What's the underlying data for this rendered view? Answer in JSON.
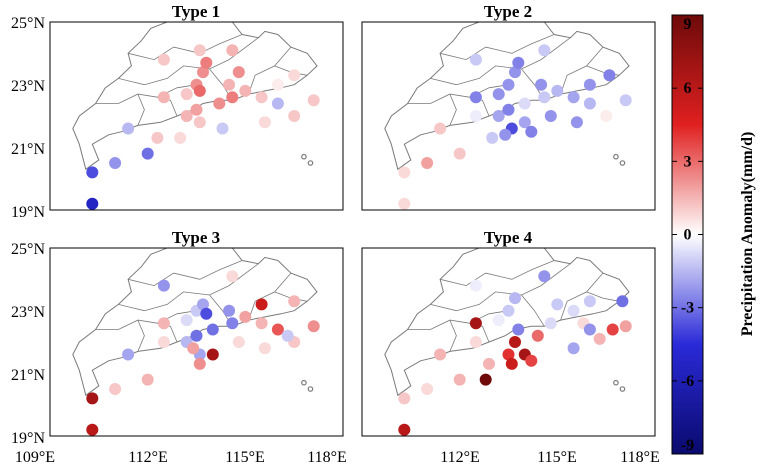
{
  "chart_data": [
    {
      "type": "scatter",
      "title": "Type 1",
      "x_ticks": [
        "109°E",
        "112°E",
        "115°E",
        "118°E"
      ],
      "y_ticks": [
        "25°N",
        "23°N",
        "21°N",
        "19°N"
      ],
      "xlim": [
        109,
        118
      ],
      "ylim": [
        19,
        25
      ],
      "points": [
        {
          "lon": 110.3,
          "lat": 19.2,
          "value": -6.5
        },
        {
          "lon": 110.3,
          "lat": 20.2,
          "value": -5.0
        },
        {
          "lon": 111.0,
          "lat": 20.5,
          "value": -3.0
        },
        {
          "lon": 112.0,
          "lat": 20.8,
          "value": -4.0
        },
        {
          "lon": 112.3,
          "lat": 21.3,
          "value": 1.5
        },
        {
          "lon": 111.4,
          "lat": 21.6,
          "value": -2.0
        },
        {
          "lon": 112.5,
          "lat": 23.8,
          "value": 1.5
        },
        {
          "lon": 112.5,
          "lat": 22.6,
          "value": 2.0
        },
        {
          "lon": 113.2,
          "lat": 22.0,
          "value": 2.0
        },
        {
          "lon": 113.2,
          "lat": 22.7,
          "value": 1.5
        },
        {
          "lon": 113.5,
          "lat": 23.0,
          "value": 3.0
        },
        {
          "lon": 113.5,
          "lat": 22.2,
          "value": 2.5
        },
        {
          "lon": 113.6,
          "lat": 21.8,
          "value": 1.5
        },
        {
          "lon": 113.6,
          "lat": 22.8,
          "value": 4.0
        },
        {
          "lon": 113.7,
          "lat": 23.4,
          "value": 3.0
        },
        {
          "lon": 113.8,
          "lat": 23.7,
          "value": 3.5
        },
        {
          "lon": 113.6,
          "lat": 24.1,
          "value": 1.5
        },
        {
          "lon": 114.2,
          "lat": 22.4,
          "value": 3.0
        },
        {
          "lon": 114.3,
          "lat": 21.6,
          "value": -1.5
        },
        {
          "lon": 114.5,
          "lat": 23.0,
          "value": 2.0
        },
        {
          "lon": 114.6,
          "lat": 22.6,
          "value": 3.5
        },
        {
          "lon": 114.8,
          "lat": 23.4,
          "value": 3.0
        },
        {
          "lon": 114.6,
          "lat": 24.1,
          "value": 2.0
        },
        {
          "lon": 115.0,
          "lat": 22.8,
          "value": 2.0
        },
        {
          "lon": 115.5,
          "lat": 22.6,
          "value": 1.5
        },
        {
          "lon": 115.6,
          "lat": 21.8,
          "value": 1.0
        },
        {
          "lon": 116.0,
          "lat": 23.0,
          "value": 0.5
        },
        {
          "lon": 116.0,
          "lat": 22.4,
          "value": -2.0
        },
        {
          "lon": 116.5,
          "lat": 23.3,
          "value": 1.0
        },
        {
          "lon": 116.5,
          "lat": 22.0,
          "value": 1.5
        },
        {
          "lon": 117.1,
          "lat": 22.5,
          "value": 1.5
        },
        {
          "lon": 113.0,
          "lat": 21.3,
          "value": 1.0
        }
      ]
    },
    {
      "type": "scatter",
      "title": "Type 2",
      "x_ticks": [
        "109°E",
        "112°E",
        "115°E",
        "118°E"
      ],
      "y_ticks": [
        "25°N",
        "23°N",
        "21°N",
        "19°N"
      ],
      "xlim": [
        109,
        118
      ],
      "ylim": [
        19,
        25
      ],
      "points": [
        {
          "lon": 110.3,
          "lat": 19.2,
          "value": 1.0
        },
        {
          "lon": 110.3,
          "lat": 20.2,
          "value": 1.0
        },
        {
          "lon": 111.0,
          "lat": 20.5,
          "value": 2.5
        },
        {
          "lon": 112.0,
          "lat": 20.8,
          "value": 1.5
        },
        {
          "lon": 111.4,
          "lat": 21.6,
          "value": 1.5
        },
        {
          "lon": 112.5,
          "lat": 23.8,
          "value": -1.5
        },
        {
          "lon": 112.5,
          "lat": 22.6,
          "value": -3.5
        },
        {
          "lon": 112.5,
          "lat": 22.0,
          "value": -0.5
        },
        {
          "lon": 113.2,
          "lat": 22.0,
          "value": -2.5
        },
        {
          "lon": 113.2,
          "lat": 22.7,
          "value": -3.0
        },
        {
          "lon": 113.5,
          "lat": 23.0,
          "value": -3.0
        },
        {
          "lon": 113.5,
          "lat": 22.2,
          "value": -3.5
        },
        {
          "lon": 113.6,
          "lat": 21.6,
          "value": -5.0
        },
        {
          "lon": 113.7,
          "lat": 23.4,
          "value": -3.0
        },
        {
          "lon": 113.8,
          "lat": 23.7,
          "value": -3.5
        },
        {
          "lon": 113.4,
          "lat": 21.4,
          "value": -3.0
        },
        {
          "lon": 114.0,
          "lat": 22.4,
          "value": -1.0
        },
        {
          "lon": 114.0,
          "lat": 21.8,
          "value": -2.5
        },
        {
          "lon": 114.2,
          "lat": 21.5,
          "value": -3.5
        },
        {
          "lon": 114.5,
          "lat": 23.0,
          "value": -3.0
        },
        {
          "lon": 114.6,
          "lat": 22.6,
          "value": -1.5
        },
        {
          "lon": 114.8,
          "lat": 22.0,
          "value": -3.0
        },
        {
          "lon": 114.6,
          "lat": 24.1,
          "value": -1.5
        },
        {
          "lon": 115.0,
          "lat": 22.8,
          "value": -2.0
        },
        {
          "lon": 115.5,
          "lat": 22.6,
          "value": -2.5
        },
        {
          "lon": 115.6,
          "lat": 21.8,
          "value": -3.0
        },
        {
          "lon": 116.0,
          "lat": 23.0,
          "value": -3.0
        },
        {
          "lon": 116.0,
          "lat": 22.4,
          "value": -2.0
        },
        {
          "lon": 116.6,
          "lat": 23.3,
          "value": -3.5
        },
        {
          "lon": 116.5,
          "lat": 22.0,
          "value": 0.5
        },
        {
          "lon": 117.1,
          "lat": 22.5,
          "value": -1.5
        },
        {
          "lon": 113.0,
          "lat": 21.3,
          "value": -1.5
        }
      ]
    },
    {
      "type": "scatter",
      "title": "Type 3",
      "x_ticks": [
        "109°E",
        "112°E",
        "115°E",
        "118°E"
      ],
      "y_ticks": [
        "25°N",
        "23°N",
        "21°N",
        "19°N"
      ],
      "xlim": [
        109,
        118
      ],
      "ylim": [
        19,
        25
      ],
      "points": [
        {
          "lon": 110.3,
          "lat": 19.2,
          "value": 7.0
        },
        {
          "lon": 110.3,
          "lat": 20.2,
          "value": 7.5
        },
        {
          "lon": 111.0,
          "lat": 20.5,
          "value": 1.5
        },
        {
          "lon": 112.0,
          "lat": 20.8,
          "value": 2.0
        },
        {
          "lon": 111.4,
          "lat": 21.6,
          "value": -2.5
        },
        {
          "lon": 112.5,
          "lat": 23.8,
          "value": -3.0
        },
        {
          "lon": 112.5,
          "lat": 22.6,
          "value": 2.0
        },
        {
          "lon": 112.5,
          "lat": 22.0,
          "value": 1.0
        },
        {
          "lon": 113.2,
          "lat": 22.0,
          "value": -2.0
        },
        {
          "lon": 113.2,
          "lat": 22.7,
          "value": -1.0
        },
        {
          "lon": 113.5,
          "lat": 23.0,
          "value": -1.5
        },
        {
          "lon": 113.5,
          "lat": 22.2,
          "value": -4.0
        },
        {
          "lon": 113.6,
          "lat": 21.6,
          "value": -2.5
        },
        {
          "lon": 113.7,
          "lat": 23.2,
          "value": -2.5
        },
        {
          "lon": 113.8,
          "lat": 22.9,
          "value": -5.0
        },
        {
          "lon": 113.6,
          "lat": 21.3,
          "value": 3.0
        },
        {
          "lon": 113.4,
          "lat": 21.8,
          "value": 2.5
        },
        {
          "lon": 114.0,
          "lat": 22.4,
          "value": -4.0
        },
        {
          "lon": 114.0,
          "lat": 21.6,
          "value": 7.5
        },
        {
          "lon": 114.5,
          "lat": 23.0,
          "value": -3.0
        },
        {
          "lon": 114.6,
          "lat": 22.6,
          "value": -3.5
        },
        {
          "lon": 114.8,
          "lat": 22.0,
          "value": 1.0
        },
        {
          "lon": 114.6,
          "lat": 24.1,
          "value": 1.0
        },
        {
          "lon": 115.0,
          "lat": 22.8,
          "value": 2.5
        },
        {
          "lon": 115.5,
          "lat": 22.6,
          "value": 2.0
        },
        {
          "lon": 115.6,
          "lat": 21.8,
          "value": 1.0
        },
        {
          "lon": 115.5,
          "lat": 23.2,
          "value": 6.5
        },
        {
          "lon": 116.0,
          "lat": 22.4,
          "value": 4.5
        },
        {
          "lon": 116.5,
          "lat": 23.3,
          "value": 2.0
        },
        {
          "lon": 116.5,
          "lat": 22.0,
          "value": 1.5
        },
        {
          "lon": 117.1,
          "lat": 22.5,
          "value": 3.0
        },
        {
          "lon": 116.3,
          "lat": 22.2,
          "value": -1.5
        }
      ]
    },
    {
      "type": "scatter",
      "title": "Type 4",
      "x_ticks": [
        "109°E",
        "112°E",
        "115°E",
        "118°E"
      ],
      "y_ticks": [
        "25°N",
        "23°N",
        "21°N",
        "19°N"
      ],
      "xlim": [
        109,
        118
      ],
      "ylim": [
        19,
        25
      ],
      "points": [
        {
          "lon": 110.3,
          "lat": 19.2,
          "value": 7.0
        },
        {
          "lon": 110.3,
          "lat": 20.2,
          "value": 1.5
        },
        {
          "lon": 111.0,
          "lat": 20.5,
          "value": 1.0
        },
        {
          "lon": 112.0,
          "lat": 20.8,
          "value": 2.0
        },
        {
          "lon": 111.4,
          "lat": 21.6,
          "value": 2.0
        },
        {
          "lon": 112.5,
          "lat": 23.8,
          "value": -0.5
        },
        {
          "lon": 112.5,
          "lat": 22.6,
          "value": 7.5
        },
        {
          "lon": 112.5,
          "lat": 22.0,
          "value": 1.0
        },
        {
          "lon": 113.2,
          "lat": 22.7,
          "value": -0.5
        },
        {
          "lon": 113.5,
          "lat": 23.0,
          "value": -1.5
        },
        {
          "lon": 113.5,
          "lat": 21.6,
          "value": 5.5
        },
        {
          "lon": 113.6,
          "lat": 21.3,
          "value": 6.5
        },
        {
          "lon": 113.7,
          "lat": 23.4,
          "value": -2.0
        },
        {
          "lon": 113.8,
          "lat": 22.4,
          "value": -3.5
        },
        {
          "lon": 113.7,
          "lat": 22.0,
          "value": 7.0
        },
        {
          "lon": 112.8,
          "lat": 20.8,
          "value": 9.0
        },
        {
          "lon": 112.9,
          "lat": 21.3,
          "value": 2.0
        },
        {
          "lon": 114.0,
          "lat": 21.6,
          "value": 7.5
        },
        {
          "lon": 114.2,
          "lat": 21.4,
          "value": 5.0
        },
        {
          "lon": 114.4,
          "lat": 22.2,
          "value": 4.0
        },
        {
          "lon": 114.6,
          "lat": 24.1,
          "value": -3.0
        },
        {
          "lon": 114.8,
          "lat": 22.6,
          "value": -1.0
        },
        {
          "lon": 115.0,
          "lat": 23.2,
          "value": -1.5
        },
        {
          "lon": 115.5,
          "lat": 23.0,
          "value": -1.0
        },
        {
          "lon": 115.5,
          "lat": 21.8,
          "value": -2.5
        },
        {
          "lon": 115.8,
          "lat": 22.6,
          "value": 1.0
        },
        {
          "lon": 116.0,
          "lat": 22.4,
          "value": -3.0
        },
        {
          "lon": 116.3,
          "lat": 22.1,
          "value": 2.0
        },
        {
          "lon": 116.0,
          "lat": 23.3,
          "value": -1.5
        },
        {
          "lon": 116.7,
          "lat": 22.4,
          "value": 5.0
        },
        {
          "lon": 117.0,
          "lat": 23.3,
          "value": -4.0
        },
        {
          "lon": 117.1,
          "lat": 22.5,
          "value": 2.5
        }
      ]
    }
  ],
  "colorbar": {
    "label": "Precipitation Anomaly(mm/d)",
    "ticks": [
      "9",
      "6",
      "3",
      "0",
      "-3",
      "-6",
      "-9"
    ],
    "range": [
      -9,
      9
    ],
    "colors": {
      "neg_end": "#0a0a6e",
      "neg_mid": "#2a2ad8",
      "neutral": "#ffffff",
      "pos_mid": "#e02020",
      "pos_end": "#6e0a0a"
    }
  },
  "map_style": {
    "boundary_color": "#7a7a7a",
    "frame_color": "#000000"
  }
}
